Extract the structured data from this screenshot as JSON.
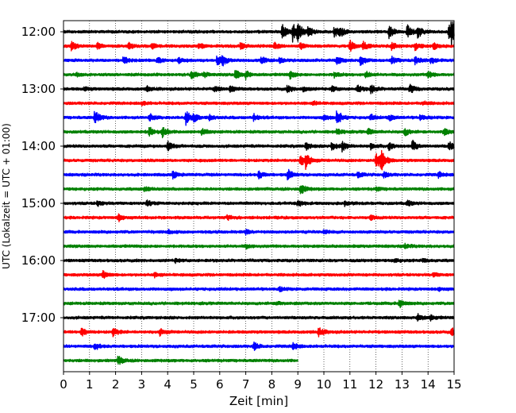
{
  "chart_data": {
    "type": "line",
    "xlabel": "Zeit  [min]",
    "ylabel": "UTC (Lokalzeit = UTC + 01:00)",
    "xlim": [
      0,
      15
    ],
    "x_ticks": [
      0,
      1,
      2,
      3,
      4,
      5,
      6,
      7,
      8,
      9,
      10,
      11,
      12,
      13,
      14,
      15
    ],
    "y_tick_labels": [
      "12:00",
      "13:00",
      "14:00",
      "15:00",
      "16:00",
      "17:00"
    ],
    "row_minutes": 15,
    "grid": "vertical dotted",
    "colors": [
      "#000000",
      "#ff0000",
      "#0000ff",
      "#008000"
    ],
    "rows": [
      {
        "start": "12:00",
        "end_min": 15,
        "events": [
          [
            8.4,
            0.9
          ],
          [
            8.8,
            1.0
          ],
          [
            9.0,
            0.9
          ],
          [
            9.4,
            0.6
          ],
          [
            10.4,
            0.6
          ],
          [
            10.6,
            0.5
          ],
          [
            12.5,
            0.8
          ],
          [
            13.2,
            0.7
          ],
          [
            13.6,
            0.7
          ],
          [
            14.8,
            1.0
          ],
          [
            14.9,
            0.9
          ]
        ]
      },
      {
        "start": "12:15",
        "end_min": 15,
        "events": [
          [
            0.3,
            0.5
          ],
          [
            1.3,
            0.3
          ],
          [
            2.5,
            0.3
          ],
          [
            3.4,
            0.3
          ],
          [
            5.2,
            0.3
          ],
          [
            6.8,
            0.35
          ],
          [
            8.1,
            0.35
          ],
          [
            9.1,
            0.3
          ],
          [
            11.0,
            0.6
          ],
          [
            11.5,
            0.5
          ],
          [
            12.6,
            0.4
          ],
          [
            13.5,
            0.4
          ],
          [
            14.2,
            0.4
          ]
        ]
      },
      {
        "start": "12:30",
        "end_min": 15,
        "events": [
          [
            2.3,
            0.4
          ],
          [
            3.6,
            0.3
          ],
          [
            4.4,
            0.3
          ],
          [
            5.9,
            0.6
          ],
          [
            6.1,
            0.5
          ],
          [
            7.6,
            0.4
          ],
          [
            8.3,
            0.3
          ],
          [
            10.5,
            0.4
          ],
          [
            11.4,
            0.6
          ],
          [
            12.6,
            0.4
          ],
          [
            13.5,
            0.4
          ],
          [
            14.1,
            0.4
          ]
        ]
      },
      {
        "start": "12:45",
        "end_min": 15,
        "events": [
          [
            0.5,
            0.2
          ],
          [
            4.9,
            0.5
          ],
          [
            5.4,
            0.3
          ],
          [
            6.6,
            0.5
          ],
          [
            7.0,
            0.4
          ],
          [
            8.7,
            0.45
          ],
          [
            10.4,
            0.3
          ],
          [
            11.6,
            0.35
          ],
          [
            14.0,
            0.4
          ]
        ]
      },
      {
        "start": "13:00",
        "end_min": 15,
        "events": [
          [
            0.8,
            0.2
          ],
          [
            3.2,
            0.25
          ],
          [
            5.8,
            0.3
          ],
          [
            6.4,
            0.3
          ],
          [
            8.6,
            0.35
          ],
          [
            9.2,
            0.3
          ],
          [
            10.3,
            0.3
          ],
          [
            11.3,
            0.4
          ],
          [
            11.8,
            0.5
          ],
          [
            13.3,
            0.5
          ]
        ]
      },
      {
        "start": "13:15",
        "end_min": 15,
        "events": [
          [
            3.0,
            0.2
          ],
          [
            9.6,
            0.2
          ],
          [
            13.8,
            0.2
          ]
        ]
      },
      {
        "start": "13:30",
        "end_min": 15,
        "events": [
          [
            1.2,
            0.85
          ],
          [
            3.3,
            0.4
          ],
          [
            4.7,
            0.8
          ],
          [
            5.0,
            0.4
          ],
          [
            5.6,
            0.3
          ],
          [
            7.3,
            0.35
          ],
          [
            10.5,
            0.9
          ],
          [
            10.0,
            0.3
          ],
          [
            11.8,
            0.3
          ],
          [
            12.5,
            0.35
          ],
          [
            13.7,
            0.3
          ]
        ]
      },
      {
        "start": "13:45",
        "end_min": 15,
        "events": [
          [
            3.3,
            0.55
          ],
          [
            3.8,
            0.5
          ],
          [
            5.3,
            0.4
          ],
          [
            10.5,
            0.3
          ],
          [
            11.7,
            0.3
          ],
          [
            13.1,
            0.4
          ],
          [
            14.6,
            0.35
          ]
        ]
      },
      {
        "start": "14:00",
        "end_min": 15,
        "events": [
          [
            4.0,
            0.5
          ],
          [
            9.3,
            0.4
          ],
          [
            10.3,
            0.55
          ],
          [
            10.7,
            0.5
          ],
          [
            11.8,
            0.3
          ],
          [
            12.5,
            0.4
          ],
          [
            13.4,
            0.6
          ],
          [
            14.8,
            0.55
          ]
        ]
      },
      {
        "start": "14:15",
        "end_min": 15,
        "events": [
          [
            9.1,
            0.6
          ],
          [
            9.3,
            0.8
          ],
          [
            12.0,
            1.0
          ],
          [
            12.2,
            1.0
          ]
        ]
      },
      {
        "start": "14:30",
        "end_min": 15,
        "events": [
          [
            4.2,
            0.4
          ],
          [
            7.5,
            0.4
          ],
          [
            8.6,
            0.6
          ],
          [
            11.3,
            0.3
          ],
          [
            12.3,
            0.3
          ],
          [
            14.4,
            0.3
          ]
        ]
      },
      {
        "start": "14:45",
        "end_min": 15,
        "events": [
          [
            3.1,
            0.25
          ],
          [
            9.1,
            0.6
          ],
          [
            12.0,
            0.2
          ]
        ]
      },
      {
        "start": "15:00",
        "end_min": 15,
        "events": [
          [
            1.3,
            0.3
          ],
          [
            3.2,
            0.3
          ],
          [
            9.0,
            0.3
          ],
          [
            10.8,
            0.25
          ],
          [
            13.2,
            0.3
          ]
        ]
      },
      {
        "start": "15:15",
        "end_min": 15,
        "events": [
          [
            2.1,
            0.45
          ],
          [
            6.3,
            0.25
          ],
          [
            11.8,
            0.2
          ]
        ]
      },
      {
        "start": "15:30",
        "end_min": 15,
        "events": [
          [
            4.0,
            0.2
          ],
          [
            7.0,
            0.2
          ],
          [
            10.0,
            0.2
          ]
        ]
      },
      {
        "start": "15:45",
        "end_min": 15,
        "events": [
          [
            7.0,
            0.2
          ],
          [
            13.1,
            0.25
          ]
        ]
      },
      {
        "start": "16:00",
        "end_min": 15,
        "events": [
          [
            4.3,
            0.2
          ],
          [
            12.7,
            0.2
          ],
          [
            13.8,
            0.2
          ]
        ]
      },
      {
        "start": "16:15",
        "end_min": 15,
        "events": [
          [
            1.5,
            0.45
          ],
          [
            3.5,
            0.2
          ],
          [
            14.2,
            0.2
          ]
        ]
      },
      {
        "start": "16:30",
        "end_min": 15,
        "events": [
          [
            8.3,
            0.2
          ],
          [
            14.4,
            0.2
          ]
        ]
      },
      {
        "start": "16:45",
        "end_min": 15,
        "events": [
          [
            8.2,
            0.2
          ],
          [
            12.9,
            0.45
          ]
        ]
      },
      {
        "start": "17:00",
        "end_min": 15,
        "events": [
          [
            13.6,
            0.5
          ],
          [
            14.1,
            0.25
          ]
        ]
      },
      {
        "start": "17:15",
        "end_min": 15,
        "events": [
          [
            0.7,
            0.5
          ],
          [
            1.9,
            0.45
          ],
          [
            3.7,
            0.4
          ],
          [
            9.8,
            0.5
          ],
          [
            14.9,
            0.4
          ]
        ]
      },
      {
        "start": "17:30",
        "end_min": 15,
        "events": [
          [
            1.2,
            0.4
          ],
          [
            7.3,
            0.45
          ],
          [
            8.8,
            0.4
          ]
        ]
      },
      {
        "start": "17:45",
        "end_min": 9.0,
        "events": [
          [
            2.1,
            0.5
          ]
        ]
      }
    ]
  }
}
